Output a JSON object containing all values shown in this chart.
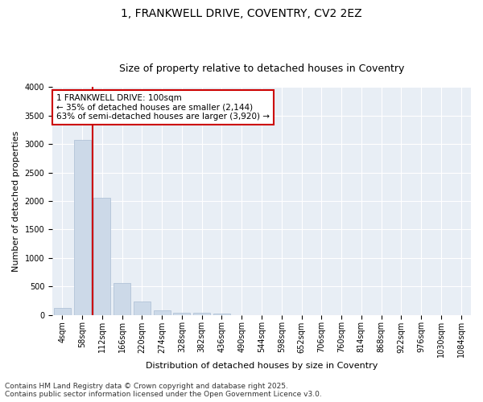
{
  "title_line1": "1, FRANKWELL DRIVE, COVENTRY, CV2 2EZ",
  "title_line2": "Size of property relative to detached houses in Coventry",
  "xlabel": "Distribution of detached houses by size in Coventry",
  "ylabel": "Number of detached properties",
  "bar_color": "#ccd9e8",
  "bar_edge_color": "#aabdd4",
  "vline_color": "#cc0000",
  "vline_x_index": 1.5,
  "annotation_text": "1 FRANKWELL DRIVE: 100sqm\n← 35% of detached houses are smaller (2,144)\n63% of semi-detached houses are larger (3,920) →",
  "annotation_box_color": "#ffffff",
  "annotation_box_edge": "#cc0000",
  "categories": [
    "4sqm",
    "58sqm",
    "112sqm",
    "166sqm",
    "220sqm",
    "274sqm",
    "328sqm",
    "382sqm",
    "436sqm",
    "490sqm",
    "544sqm",
    "598sqm",
    "652sqm",
    "706sqm",
    "760sqm",
    "814sqm",
    "868sqm",
    "922sqm",
    "976sqm",
    "1030sqm",
    "1084sqm"
  ],
  "values": [
    120,
    3080,
    2060,
    560,
    230,
    80,
    40,
    30,
    20,
    0,
    0,
    0,
    0,
    0,
    0,
    0,
    0,
    0,
    0,
    0,
    0
  ],
  "ylim": [
    0,
    4000
  ],
  "yticks": [
    0,
    500,
    1000,
    1500,
    2000,
    2500,
    3000,
    3500,
    4000
  ],
  "footer_line1": "Contains HM Land Registry data © Crown copyright and database right 2025.",
  "footer_line2": "Contains public sector information licensed under the Open Government Licence v3.0.",
  "bg_color": "#ffffff",
  "plot_bg_color": "#e8eef5",
  "grid_color": "#ffffff",
  "title_fontsize": 10,
  "subtitle_fontsize": 9,
  "axis_label_fontsize": 8,
  "tick_fontsize": 7,
  "footer_fontsize": 6.5,
  "annotation_fontsize": 7.5
}
